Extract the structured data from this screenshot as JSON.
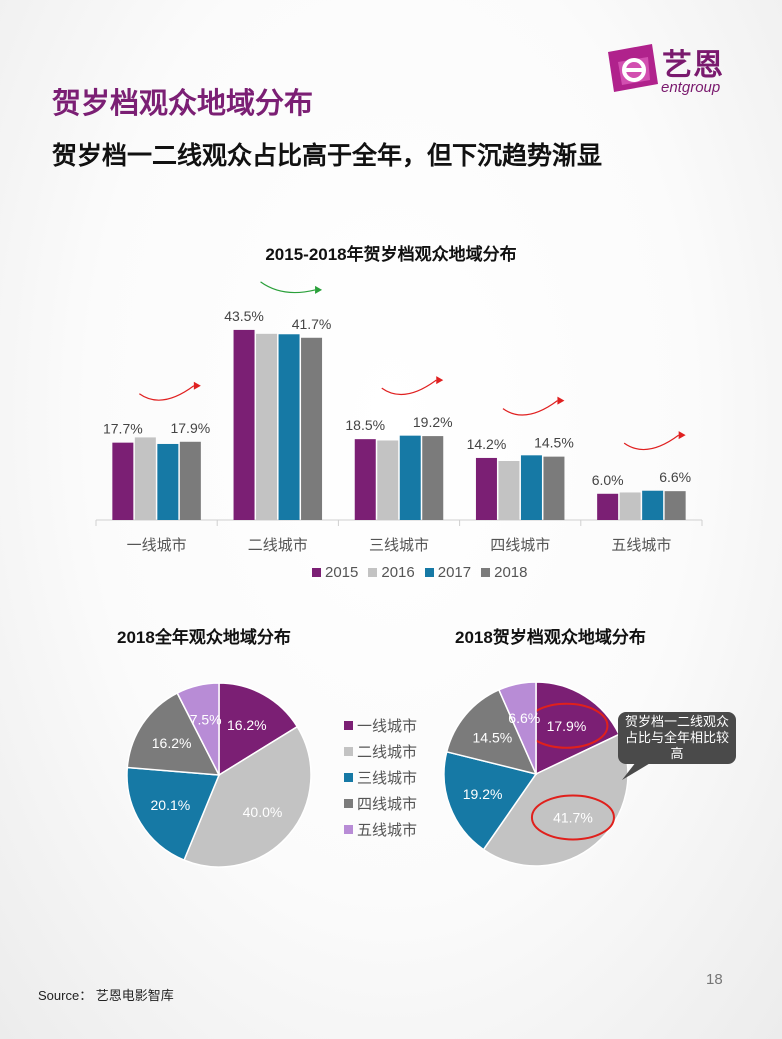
{
  "header": {
    "logo_text": "艺恩",
    "logo_sub": "entgroup",
    "title": "贺岁档观众地域分布",
    "subtitle": "贺岁档一二线观众占比高于全年，但下沉趋势渐显"
  },
  "colors": {
    "2015": "#7b1f74",
    "2016": "#c3c3c3",
    "2017": "#1679a5",
    "2018": "#7b7b7b",
    "五线城市": "#b88cd6",
    "accent": "#7b1f74"
  },
  "chart_data": [
    {
      "type": "bar",
      "title": "2015-2018年贺岁档观众地域分布",
      "categories": [
        "一线城市",
        "二线城市",
        "三线城市",
        "四线城市",
        "五线城市"
      ],
      "series": [
        {
          "name": "2015",
          "values": [
            17.7,
            43.5,
            18.5,
            14.2,
            6.0
          ]
        },
        {
          "name": "2016",
          "values": [
            18.9,
            42.6,
            18.2,
            13.5,
            6.3
          ]
        },
        {
          "name": "2017",
          "values": [
            17.4,
            42.5,
            19.3,
            14.8,
            6.7
          ]
        },
        {
          "name": "2018",
          "values": [
            17.9,
            41.7,
            19.2,
            14.5,
            6.6
          ]
        }
      ],
      "data_labels": [
        {
          "category": 0,
          "series": 0,
          "text": "17.7%"
        },
        {
          "category": 0,
          "series": 3,
          "text": "17.9%"
        },
        {
          "category": 1,
          "series": 0,
          "text": "43.5%"
        },
        {
          "category": 1,
          "series": 3,
          "text": "41.7%"
        },
        {
          "category": 2,
          "series": 0,
          "text": "18.5%"
        },
        {
          "category": 2,
          "series": 3,
          "text": "19.2%"
        },
        {
          "category": 3,
          "series": 0,
          "text": "14.2%"
        },
        {
          "category": 3,
          "series": 3,
          "text": "14.5%"
        },
        {
          "category": 4,
          "series": 0,
          "text": "6.0%"
        },
        {
          "category": 4,
          "series": 3,
          "text": "6.6%"
        }
      ],
      "ylim": [
        0,
        50
      ],
      "legend": "bottom",
      "grid": false
    },
    {
      "type": "pie",
      "title": "2018全年观众地域分布",
      "categories": [
        "一线城市",
        "二线城市",
        "三线城市",
        "四线城市",
        "五线城市"
      ],
      "values": [
        16.2,
        40.0,
        20.1,
        16.2,
        7.5
      ],
      "labels": [
        "16.2%",
        "40.0%",
        "20.1%",
        "16.2%",
        "7.5%"
      ],
      "legend": "right"
    },
    {
      "type": "pie",
      "title": "2018贺岁档观众地域分布",
      "categories": [
        "一线城市",
        "二线城市",
        "三线城市",
        "四线城市",
        "五线城市"
      ],
      "values": [
        17.9,
        41.7,
        19.2,
        14.5,
        6.6
      ],
      "labels": [
        "17.9%",
        "41.7%",
        "19.2%",
        "14.5%",
        "6.6%"
      ],
      "highlight": [
        0,
        1
      ]
    }
  ],
  "callout": {
    "text": "贺岁档一二线观众占比与全年相比较高"
  },
  "footer": {
    "page_number": "18",
    "source": "Source：  艺恩电影智库"
  }
}
